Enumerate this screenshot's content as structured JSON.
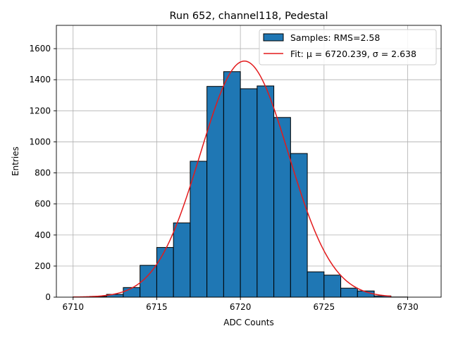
{
  "chart_data": {
    "type": "bar",
    "title": "Run 652, channel118, Pedestal",
    "xlabel": "ADC Counts",
    "ylabel": "Entries",
    "xlim": [
      6709.0,
      6732.0
    ],
    "ylim": [
      0,
      1750
    ],
    "xticks": [
      6710,
      6715,
      6720,
      6725,
      6730
    ],
    "yticks": [
      0,
      200,
      400,
      600,
      800,
      1000,
      1200,
      1400,
      1600
    ],
    "grid": true,
    "legend_position": "upper right",
    "series": [
      {
        "name": "Samples: RMS=2.58",
        "kind": "histogram",
        "color": "#1f77b4",
        "bin_edges": [
          6710,
          6711,
          6712,
          6713,
          6714,
          6715,
          6716,
          6717,
          6718,
          6719,
          6720,
          6721,
          6722,
          6723,
          6724,
          6725,
          6726,
          6727,
          6728,
          6729,
          6730,
          6731
        ],
        "values": [
          2,
          5,
          18,
          62,
          205,
          320,
          478,
          875,
          1357,
          1452,
          1342,
          1360,
          1157,
          925,
          163,
          142,
          58,
          40,
          8,
          1,
          0
        ]
      },
      {
        "name": "Fit: μ = 6720.239, σ = 2.638",
        "kind": "gaussian_fit",
        "color": "#e31a1c",
        "mu": 6720.239,
        "sigma": 2.638,
        "amplitude": 1520,
        "x_range": [
          6710,
          6729
        ]
      }
    ]
  }
}
